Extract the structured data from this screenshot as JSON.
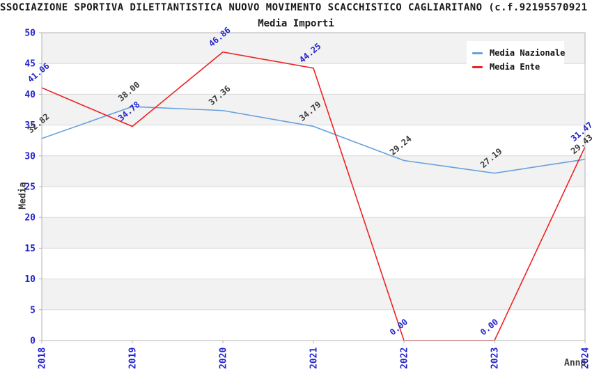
{
  "header": {
    "title": "SSOCIAZIONE SPORTIVA DILETTANTISTICA NUOVO MOVIMENTO SCACCHISTICO CAGLIARITANO (c.f.92195570921",
    "subtitle": "Media Importi"
  },
  "chart_data": {
    "type": "line",
    "title": "SSOCIAZIONE SPORTIVA DILETTANTISTICA NUOVO MOVIMENTO SCACCHISTICO CAGLIARITANO (c.f.92195570921",
    "subtitle": "Media Importi",
    "xlabel": "Anno",
    "ylabel": "Media",
    "categories": [
      "2018",
      "2019",
      "2020",
      "2021",
      "2022",
      "2023",
      "2024"
    ],
    "series": [
      {
        "name": "Media Nazionale",
        "color": "#68a1dd",
        "label_color": "#3c3c3c",
        "values": [
          32.82,
          38.0,
          37.36,
          34.79,
          29.24,
          27.19,
          29.43
        ],
        "point_labels": [
          "32.82",
          "38.00",
          "37.36",
          "34.79",
          "29.24",
          "27.19",
          "29.43"
        ]
      },
      {
        "name": "Media Ente",
        "color": "#ee2222",
        "label_color": "#2323cc",
        "values": [
          41.06,
          34.78,
          46.86,
          44.25,
          0.0,
          0.0,
          31.47
        ],
        "point_labels": [
          "41.06",
          "34.78",
          "46.86",
          "44.25",
          "0.00",
          "0.00",
          "31.47"
        ]
      }
    ],
    "ylim": [
      0,
      50
    ],
    "ytick_step": 5,
    "ytick_labels": [
      "0",
      "5",
      "10",
      "15",
      "20",
      "25",
      "30",
      "35",
      "40",
      "45",
      "50"
    ],
    "grid": "horizontal",
    "band_fill": "alternating",
    "legend_position": "top-right",
    "colors": {
      "tick_label": "#2323cc",
      "band_gray": "#f2f2f2",
      "band_white": "#ffffff",
      "gridline": "#d9d9d9",
      "plot_border": "#b3b3b3",
      "axis_title": "#3c3c3c",
      "title_text": "#1a1a1a"
    }
  }
}
